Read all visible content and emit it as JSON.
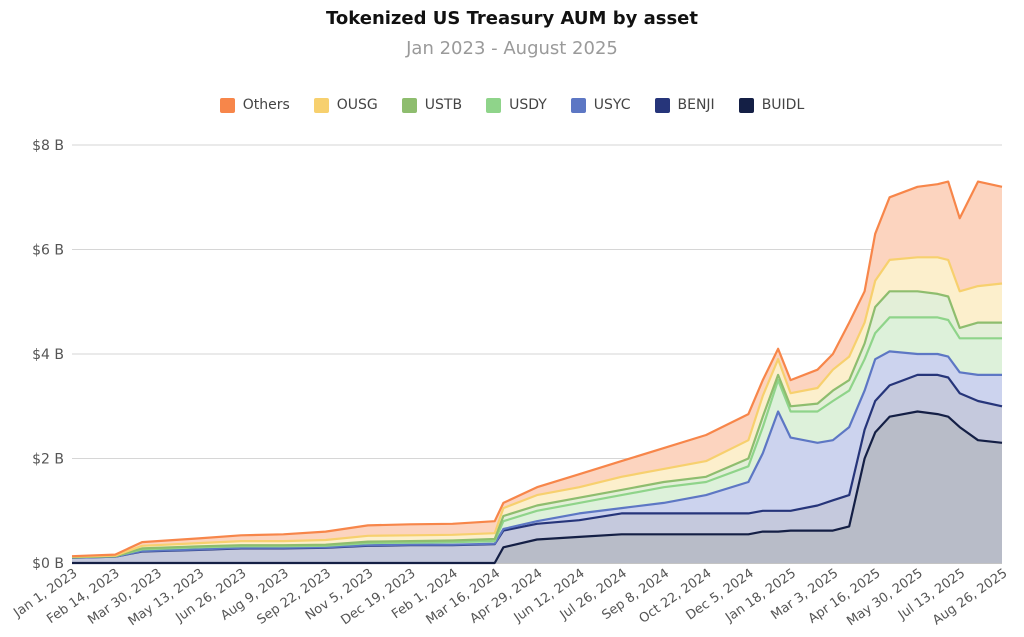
{
  "chart_data": {
    "type": "area",
    "title": "Tokenized US Treasury AUM by asset",
    "subtitle": "Jan 2023 - August 2025",
    "ylabel": "",
    "xlabel": "",
    "y_ticks": [
      "$0 B",
      "$2 B",
      "$4 B",
      "$6 B",
      "$8 B"
    ],
    "ylim": [
      0,
      8
    ],
    "y_unit": "billion USD",
    "x_ticks": [
      "Jan 1, 2023",
      "Feb 14, 2023",
      "Mar 30, 2023",
      "May 13, 2023",
      "Jun 26, 2023",
      "Aug 9, 2023",
      "Sep 22, 2023",
      "Nov 5, 2023",
      "Dec 19, 2023",
      "Feb 1, 2024",
      "Mar 16, 2024",
      "Apr 29, 2024",
      "Jun 12, 2024",
      "Jul 26, 2024",
      "Sep 8, 2024",
      "Oct 22, 2024",
      "Dec 5, 2024",
      "Jan 18, 2025",
      "Mar 3, 2025",
      "Apr 16, 2025",
      "May 30, 2025",
      "Jul 13, 2025",
      "Aug 26, 2025"
    ],
    "x": [
      "2023-01-01",
      "2023-02-15",
      "2023-03-15",
      "2023-05-13",
      "2023-06-26",
      "2023-08-09",
      "2023-09-22",
      "2023-11-05",
      "2023-12-19",
      "2024-02-01",
      "2024-03-16",
      "2024-03-25",
      "2024-04-29",
      "2024-06-12",
      "2024-07-26",
      "2024-09-08",
      "2024-10-22",
      "2024-12-05",
      "2024-12-20",
      "2025-01-05",
      "2025-01-18",
      "2025-02-15",
      "2025-03-03",
      "2025-03-20",
      "2025-04-05",
      "2025-04-16",
      "2025-05-01",
      "2025-05-30",
      "2025-06-20",
      "2025-07-01",
      "2025-07-13",
      "2025-08-01",
      "2025-08-26"
    ],
    "series_order": "stacked bottom to top: BUIDL, BENJI, USYC, USDY, USTB, OUSG, Others (values are stacked cumulative totals)",
    "series": [
      {
        "name": "BUIDL",
        "color": "#141f45",
        "fill": "#b8bcc8",
        "values": [
          0,
          0,
          0,
          0,
          0,
          0,
          0,
          0,
          0,
          0,
          0,
          0.3,
          0.45,
          0.5,
          0.55,
          0.55,
          0.55,
          0.55,
          0.6,
          0.6,
          0.62,
          0.62,
          0.62,
          0.7,
          2.0,
          2.5,
          2.8,
          2.9,
          2.85,
          2.8,
          2.6,
          2.35,
          2.3
        ]
      },
      {
        "name": "BENJI",
        "color": "#26357a",
        "fill": "#c5c9dd",
        "values": [
          0.1,
          0.12,
          0.22,
          0.25,
          0.28,
          0.28,
          0.29,
          0.33,
          0.34,
          0.34,
          0.36,
          0.62,
          0.75,
          0.82,
          0.95,
          0.95,
          0.95,
          0.95,
          1.0,
          1.0,
          1.0,
          1.1,
          1.2,
          1.3,
          2.55,
          3.1,
          3.4,
          3.6,
          3.6,
          3.55,
          3.25,
          3.1,
          3.0
        ]
      },
      {
        "name": "USYC",
        "color": "#5d77c4",
        "fill": "#ccd3ee",
        "values": [
          0.1,
          0.12,
          0.23,
          0.26,
          0.29,
          0.29,
          0.3,
          0.34,
          0.35,
          0.35,
          0.37,
          0.65,
          0.8,
          0.95,
          1.05,
          1.15,
          1.3,
          1.55,
          2.1,
          2.9,
          2.4,
          2.3,
          2.35,
          2.6,
          3.3,
          3.9,
          4.05,
          4.0,
          4.0,
          3.95,
          3.65,
          3.6,
          3.6
        ]
      },
      {
        "name": "USDY",
        "color": "#8fd48a",
        "fill": "#ddf1da",
        "values": [
          0.11,
          0.13,
          0.26,
          0.3,
          0.32,
          0.32,
          0.33,
          0.38,
          0.39,
          0.4,
          0.42,
          0.8,
          1.0,
          1.15,
          1.3,
          1.45,
          1.55,
          1.85,
          2.6,
          3.5,
          2.9,
          2.9,
          3.1,
          3.3,
          3.9,
          4.4,
          4.7,
          4.7,
          4.7,
          4.65,
          4.3,
          4.3,
          4.3
        ]
      },
      {
        "name": "USTB",
        "color": "#8ebd6e",
        "fill": "#e3efd8",
        "values": [
          0.11,
          0.13,
          0.28,
          0.32,
          0.34,
          0.34,
          0.35,
          0.41,
          0.42,
          0.43,
          0.46,
          0.9,
          1.1,
          1.25,
          1.4,
          1.55,
          1.65,
          2.0,
          2.8,
          3.6,
          3.0,
          3.05,
          3.3,
          3.5,
          4.2,
          4.9,
          5.2,
          5.2,
          5.15,
          5.1,
          4.5,
          4.6,
          4.6
        ]
      },
      {
        "name": "OUSG",
        "color": "#f7d06e",
        "fill": "#fcefcc",
        "values": [
          0.12,
          0.14,
          0.33,
          0.38,
          0.42,
          0.42,
          0.44,
          0.52,
          0.53,
          0.54,
          0.57,
          1.05,
          1.3,
          1.45,
          1.65,
          1.8,
          1.95,
          2.35,
          3.2,
          3.9,
          3.25,
          3.35,
          3.7,
          3.95,
          4.6,
          5.4,
          5.8,
          5.85,
          5.85,
          5.8,
          5.2,
          5.3,
          5.35
        ]
      },
      {
        "name": "Others",
        "color": "#f7864a",
        "fill": "#fcd4bf",
        "values": [
          0.13,
          0.16,
          0.4,
          0.47,
          0.53,
          0.55,
          0.6,
          0.72,
          0.74,
          0.75,
          0.8,
          1.15,
          1.45,
          1.7,
          1.95,
          2.2,
          2.45,
          2.85,
          3.5,
          4.1,
          3.5,
          3.7,
          4.0,
          4.6,
          5.2,
          6.3,
          7.0,
          7.2,
          7.25,
          7.3,
          6.6,
          7.3,
          7.2
        ]
      }
    ],
    "legend_order": [
      "Others",
      "OUSG",
      "USTB",
      "USDY",
      "USYC",
      "BENJI",
      "BUIDL"
    ],
    "legend_position": "top-center",
    "grid": "horizontal"
  }
}
